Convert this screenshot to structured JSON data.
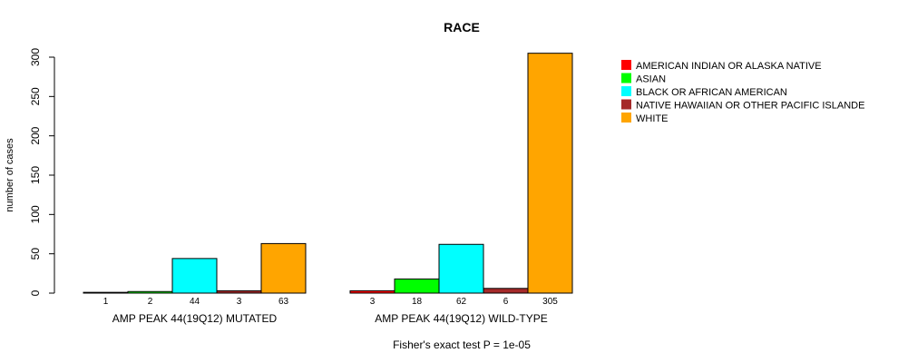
{
  "chart_data": {
    "type": "bar",
    "title": "RACE",
    "ylabel": "number of cases",
    "ylim": [
      0,
      300
    ],
    "yticks": [
      0,
      50,
      100,
      150,
      200,
      250,
      300
    ],
    "footnote": "Fisher's exact test P = 1e-05",
    "categories": [
      "AMERICAN INDIAN OR ALASKA NATIVE",
      "ASIAN",
      "BLACK OR AFRICAN AMERICAN",
      "NATIVE HAWAIIAN OR OTHER PACIFIC ISLANDER",
      "WHITE"
    ],
    "legend_labels": [
      "AMERICAN INDIAN OR ALASKA NATIVE",
      "ASIAN",
      "BLACK OR AFRICAN AMERICAN",
      "NATIVE HAWAIIAN OR OTHER PACIFIC ISLANDE",
      "WHITE"
    ],
    "colors": [
      "#ff0000",
      "#00ff00",
      "#00ffff",
      "#a52a2a",
      "#ffa500"
    ],
    "groups": [
      {
        "name": "AMP PEAK 44(19Q12) MUTATED",
        "values": [
          1,
          2,
          44,
          3,
          63
        ]
      },
      {
        "name": "AMP PEAK 44(19Q12) WILD-TYPE",
        "values": [
          3,
          18,
          62,
          6,
          305
        ]
      }
    ]
  }
}
